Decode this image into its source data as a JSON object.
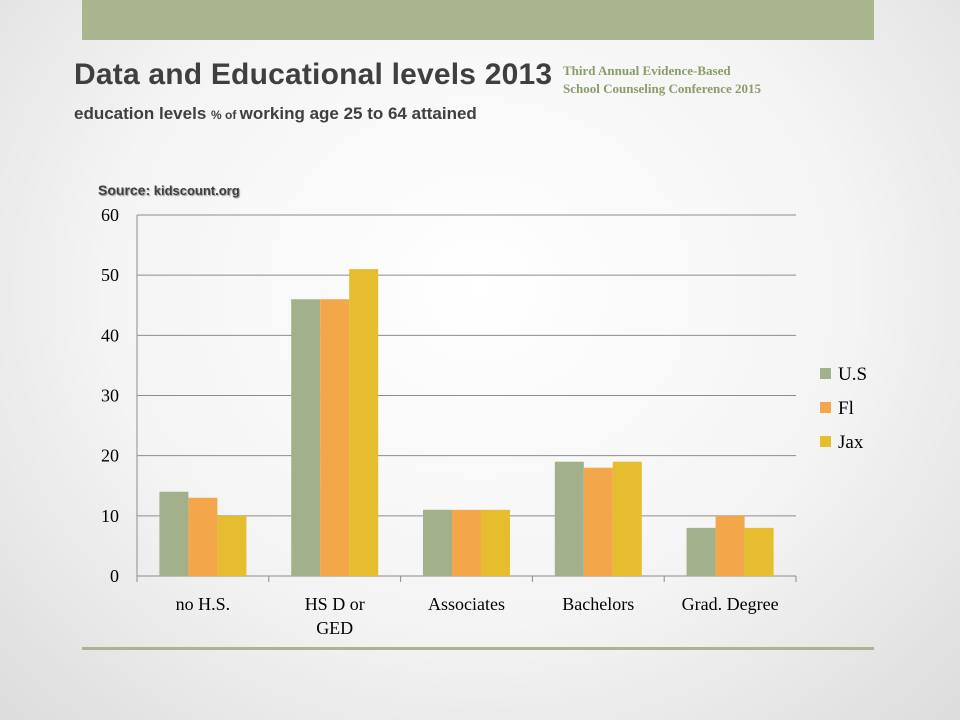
{
  "slide": {
    "title": "Data and Educational  levels 2013",
    "subtitle_part1": "education levels ",
    "subtitle_small": "% of ",
    "subtitle_part2": "working age 25 to 64 attained",
    "conference": "Third Annual Evidence-Based School Counseling Conference 2015",
    "source_label": "Source:",
    "source_value": " kidscount.org"
  },
  "colors": {
    "accent": "#a9b58f",
    "us": "#a2b08c",
    "fl": "#f3a64a",
    "jax": "#e6bd2e"
  },
  "chart_data": {
    "type": "bar",
    "categories": [
      "no H.S.",
      "HS D or GED",
      "Associates",
      "Bachelors",
      "Grad. Degree"
    ],
    "category_lines": [
      [
        "no H.S."
      ],
      [
        "HS D or",
        "GED"
      ],
      [
        "Associates"
      ],
      [
        "Bachelors"
      ],
      [
        "Grad. Degree"
      ]
    ],
    "series": [
      {
        "name": "U.S",
        "values": [
          14,
          46,
          11,
          19,
          8
        ]
      },
      {
        "name": "Fl",
        "values": [
          13,
          46,
          11,
          18,
          10
        ]
      },
      {
        "name": "Jax",
        "values": [
          10,
          51,
          11,
          19,
          8
        ]
      }
    ],
    "ylim": [
      0,
      60
    ],
    "yticks": [
      "0",
      "10",
      "20",
      "30",
      "40",
      "50",
      "60"
    ],
    "grid": true,
    "legend_position": "right"
  }
}
